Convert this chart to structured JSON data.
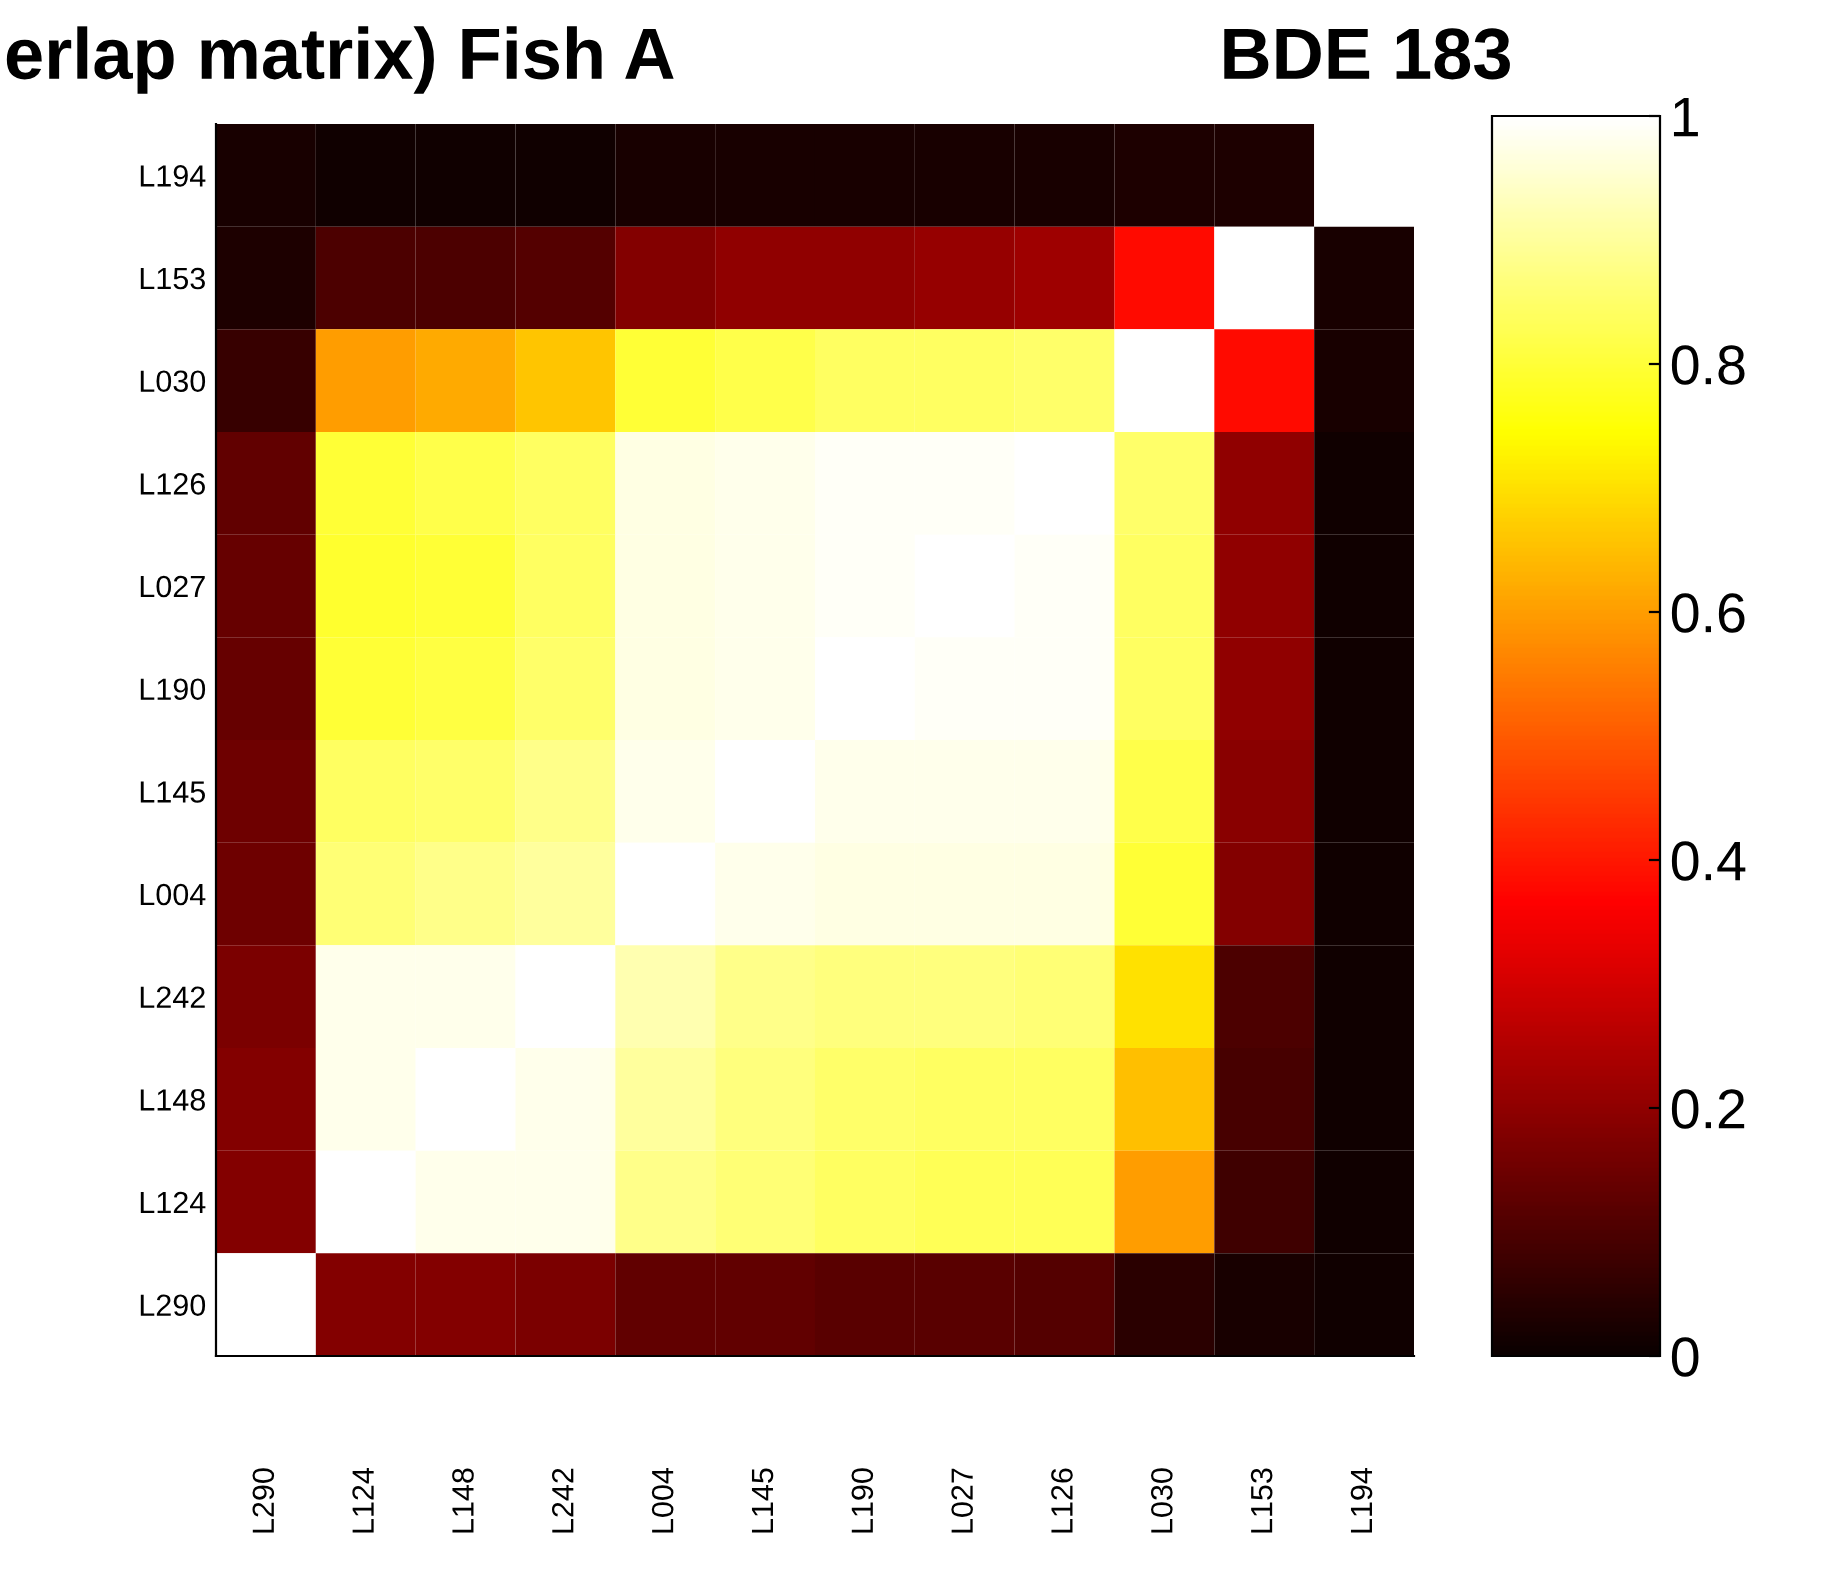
{
  "chart_data": {
    "type": "heatmap",
    "title": "erlap matrix) Fish A",
    "subtitle": "BDE 183",
    "categories": [
      "L290",
      "L124",
      "L148",
      "L242",
      "L004",
      "L145",
      "L190",
      "L027",
      "L126",
      "L030",
      "L153",
      "L194"
    ],
    "y_categories": [
      "L194",
      "L153",
      "L030",
      "L126",
      "L027",
      "L190",
      "L145",
      "L004",
      "L242",
      "L148",
      "L124",
      "L290"
    ],
    "cells": [
      [
        0.02,
        0.01,
        0.01,
        0.01,
        0.02,
        0.02,
        0.02,
        0.02,
        0.02,
        0.03,
        0.03,
        1
      ],
      [
        0.03,
        0.1,
        0.1,
        0.11,
        0.18,
        0.2,
        0.2,
        0.21,
        0.22,
        0.38,
        1,
        0.02
      ],
      [
        0.07,
        0.6,
        0.62,
        0.66,
        0.8,
        0.82,
        0.84,
        0.84,
        0.85,
        1,
        0.38,
        0.02
      ],
      [
        0.13,
        0.8,
        0.82,
        0.84,
        0.97,
        0.98,
        0.99,
        0.99,
        1,
        0.85,
        0.2,
        0.01
      ],
      [
        0.14,
        0.79,
        0.8,
        0.84,
        0.97,
        0.98,
        0.99,
        1,
        0.99,
        0.84,
        0.2,
        0.01
      ],
      [
        0.14,
        0.8,
        0.81,
        0.85,
        0.97,
        0.98,
        1,
        0.99,
        0.99,
        0.84,
        0.2,
        0.01
      ],
      [
        0.15,
        0.84,
        0.85,
        0.88,
        0.98,
        1,
        0.98,
        0.98,
        0.98,
        0.82,
        0.19,
        0.01
      ],
      [
        0.15,
        0.86,
        0.88,
        0.9,
        1,
        0.98,
        0.97,
        0.97,
        0.97,
        0.8,
        0.18,
        0.01
      ],
      [
        0.17,
        0.98,
        0.98,
        1,
        0.92,
        0.88,
        0.87,
        0.87,
        0.86,
        0.7,
        0.1,
        0.01
      ],
      [
        0.18,
        0.98,
        1,
        0.98,
        0.9,
        0.87,
        0.85,
        0.84,
        0.84,
        0.65,
        0.09,
        0.01
      ],
      [
        0.18,
        1,
        0.98,
        0.98,
        0.88,
        0.86,
        0.84,
        0.83,
        0.83,
        0.6,
        0.08,
        0.01
      ],
      [
        1,
        0.18,
        0.18,
        0.17,
        0.13,
        0.13,
        0.12,
        0.12,
        0.11,
        0.05,
        0.02,
        0.01
      ]
    ],
    "clim": [
      0,
      1
    ],
    "cticks": [
      0,
      0.2,
      0.4,
      0.6,
      0.8,
      1
    ]
  }
}
